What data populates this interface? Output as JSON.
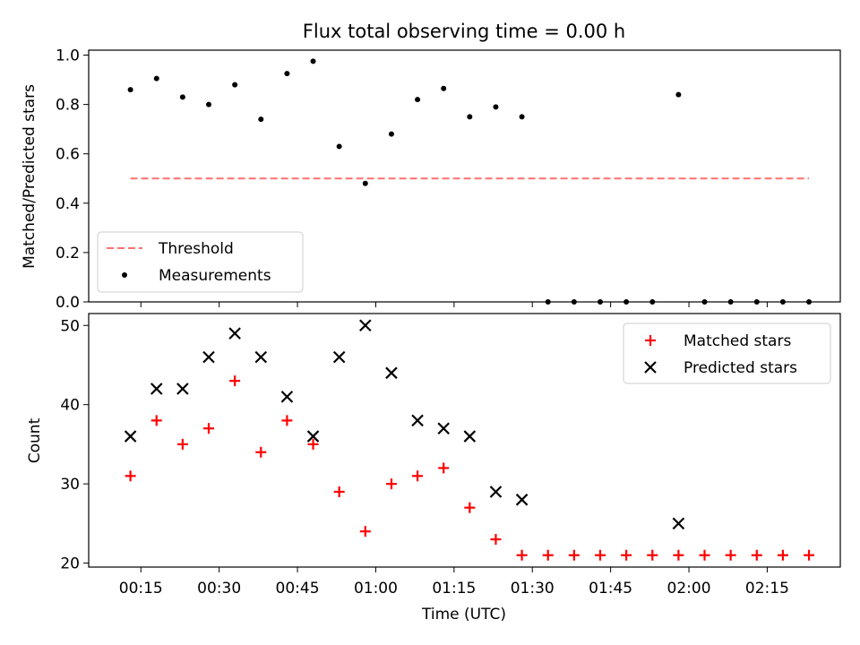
{
  "chart_data": [
    {
      "type": "scatter",
      "title": "Flux total observing time = 0.00 h",
      "xlabel": "",
      "ylabel": "Matched/Predicted stars",
      "xlim": [
        "00:05",
        "02:29"
      ],
      "ylim": [
        0,
        1.02
      ],
      "yticks": [
        "0.0",
        "0.2",
        "0.4",
        "0.6",
        "0.8",
        "1.0"
      ],
      "grid": false,
      "legend_position": "lower-left",
      "series": [
        {
          "name": "Threshold",
          "style": "dashed-line",
          "color": "#ff7070",
          "x": [
            "00:13",
            "02:23"
          ],
          "y": [
            0.5,
            0.5
          ]
        },
        {
          "name": "Measurements",
          "style": "dot",
          "color": "#000000",
          "x": [
            "00:13",
            "00:18",
            "00:23",
            "00:28",
            "00:33",
            "00:38",
            "00:43",
            "00:48",
            "00:53",
            "00:58",
            "01:03",
            "01:08",
            "01:13",
            "01:18",
            "01:23",
            "01:28",
            "01:33",
            "01:38",
            "01:43",
            "01:48",
            "01:53",
            "01:58",
            "02:03",
            "02:08",
            "02:13",
            "02:18",
            "02:23"
          ],
          "y": [
            0.86,
            0.905,
            0.83,
            0.8,
            0.88,
            0.74,
            0.925,
            0.975,
            0.63,
            0.48,
            0.68,
            0.82,
            0.865,
            0.75,
            0.79,
            0.75,
            0.0,
            0.0,
            0.0,
            0.0,
            0.0,
            0.84,
            0.0,
            0.0,
            0.0,
            0.0,
            0.0
          ]
        }
      ]
    },
    {
      "type": "scatter",
      "xlabel": "Time (UTC)",
      "ylabel": "Count",
      "xlim": [
        "00:05",
        "02:29"
      ],
      "ylim": [
        19.5,
        51.5
      ],
      "yticks": [
        "20",
        "30",
        "40",
        "50"
      ],
      "xticks": [
        "00:15",
        "00:30",
        "00:45",
        "01:00",
        "01:15",
        "01:30",
        "01:45",
        "02:00",
        "02:15"
      ],
      "grid": false,
      "legend_position": "top-right",
      "series": [
        {
          "name": "Matched stars",
          "marker": "+",
          "color": "#ff0000",
          "x": [
            "00:13",
            "00:18",
            "00:23",
            "00:28",
            "00:33",
            "00:38",
            "00:43",
            "00:48",
            "00:53",
            "00:58",
            "01:03",
            "01:08",
            "01:13",
            "01:18",
            "01:23",
            "01:28",
            "01:33",
            "01:38",
            "01:43",
            "01:48",
            "01:53",
            "01:58",
            "02:03",
            "02:08",
            "02:13",
            "02:18",
            "02:23"
          ],
          "y": [
            31,
            38,
            35,
            37,
            43,
            34,
            38,
            35,
            29,
            24,
            30,
            31,
            32,
            27,
            23,
            21,
            21,
            21,
            21,
            21,
            21,
            21,
            21,
            21,
            21,
            21,
            21
          ]
        },
        {
          "name": "Predicted stars",
          "marker": "x",
          "color": "#000000",
          "x": [
            "00:13",
            "00:18",
            "00:23",
            "00:28",
            "00:33",
            "00:38",
            "00:43",
            "00:48",
            "00:53",
            "00:58",
            "01:03",
            "01:08",
            "01:13",
            "01:18",
            "01:23",
            "01:28",
            "01:58"
          ],
          "y": [
            36,
            42,
            42,
            46,
            49,
            46,
            41,
            36,
            46,
            50,
            44,
            38,
            37,
            36,
            29,
            28,
            25
          ]
        }
      ]
    }
  ]
}
